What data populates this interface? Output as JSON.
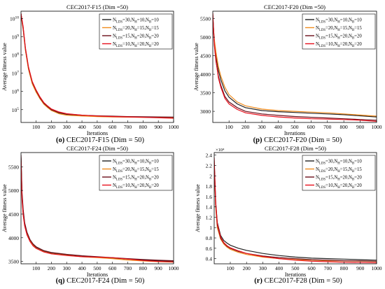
{
  "figure": {
    "series_colors": [
      "#222222",
      "#f08c1e",
      "#6b0f1a",
      "#e8101c"
    ],
    "panels": [
      {
        "title": "CEC2017-F15 (Dim =50)",
        "xlabel": "Iterations",
        "ylabel": "Average fitness value",
        "caption_letter": "(o)",
        "caption_text": " CEC2017-F15 (Dim = 50)"
      },
      {
        "title": "CEC2017-F20 (Dim =50)",
        "xlabel": "Iterations",
        "ylabel": "Average fitness value",
        "caption_letter": "(p)",
        "caption_text": " CEC2017-F20 (Dim = 50)"
      },
      {
        "title": "CEC2017-F24 (Dim =50)",
        "xlabel": "Iterations",
        "ylabel": "Average fitness value",
        "caption_letter": "(q)",
        "caption_text": " CEC2017-F24 (Dim = 50)"
      },
      {
        "title": "CEC2017-F28 (Dim =50)",
        "xlabel": "Iterations",
        "ylabel": "Average fitness value",
        "caption_letter": "(r)",
        "caption_text": " CEC2017-F28 (Dim = 50)",
        "y_multiplier": "×10⁴"
      }
    ]
  },
  "chart_data": [
    {
      "type": "line",
      "title": "CEC2017-F15 (Dim =50)",
      "xlabel": "Iterations",
      "ylabel": "Average fitness value",
      "yscale": "log",
      "xlim": [
        1,
        1000
      ],
      "ylim_log10": [
        4.3,
        10.4
      ],
      "x_ticks": [
        100,
        200,
        300,
        400,
        500,
        600,
        700,
        800,
        900,
        1000
      ],
      "y_ticks": [
        {
          "value": 100000.0,
          "base": "10",
          "exp": "5"
        },
        {
          "value": 1000000.0,
          "base": "10",
          "exp": "6"
        },
        {
          "value": 10000000.0,
          "base": "10",
          "exp": "7"
        },
        {
          "value": 100000000.0,
          "base": "10",
          "exp": "8"
        },
        {
          "value": 1000000000.0,
          "base": "10",
          "exp": "9"
        },
        {
          "value": 10000000000.0,
          "base": "10",
          "exp": "10"
        }
      ],
      "legend_location": "top-right",
      "series": [
        {
          "name": "N_LDS=30,N_H=10,N_B=10",
          "label": {
            "n": "N",
            "s1": "LDS",
            "v1": "=30,N",
            "s2": "H",
            "v2": "=10,N",
            "s3": "B",
            "v3": "=10"
          },
          "x": [
            1,
            15,
            30,
            50,
            75,
            100,
            125,
            150,
            175,
            200,
            250,
            300,
            400,
            500,
            600,
            700,
            800,
            900,
            1000
          ],
          "y": [
            18000000000.0,
            3000000000.0,
            200000000.0,
            18000000.0,
            3000000.0,
            1000000.0,
            400000.0,
            220000.0,
            140000.0,
            90000.0,
            65000.0,
            55000.0,
            48000.0,
            44000.0,
            42000.0,
            40000.0,
            39000.0,
            38000.0,
            37000.0
          ]
        },
        {
          "name": "N_LDS=20,N_H=15,N_B=15",
          "label": {
            "n": "N",
            "s1": "LDS",
            "v1": "=20,N",
            "s2": "H",
            "v2": "=15,N",
            "s3": "B",
            "v3": "=15"
          },
          "x": [
            1,
            15,
            30,
            50,
            75,
            100,
            125,
            150,
            175,
            200,
            250,
            300,
            400,
            500,
            600,
            700,
            800,
            900,
            1000
          ],
          "y": [
            15000000000.0,
            2500000000.0,
            180000000.0,
            16000000.0,
            2600000.0,
            900000.0,
            400000.0,
            200000.0,
            130000.0,
            90000.0,
            60000.0,
            50000.0,
            45000.0,
            42000.0,
            40000.0,
            39000.0,
            38000.0,
            37000.0,
            36000.0
          ]
        },
        {
          "name": "N_LDS=15,N_H=20,N_B=20",
          "label": {
            "n": "N",
            "s1": "LDS",
            "v1": "=15,N",
            "s2": "H",
            "v2": "=20,N",
            "s3": "B",
            "v3": "=20"
          },
          "x": [
            1,
            15,
            30,
            50,
            75,
            100,
            125,
            150,
            175,
            200,
            250,
            300,
            400,
            500,
            600,
            700,
            800,
            900,
            1000
          ],
          "y": [
            17000000000.0,
            2800000000.0,
            220000000.0,
            20000000.0,
            3200000.0,
            1100000.0,
            450000.0,
            230000.0,
            150000.0,
            100000.0,
            70000.0,
            58000.0,
            50000.0,
            46000.0,
            44000.0,
            42000.0,
            41000.0,
            40000.0,
            39000.0
          ]
        },
        {
          "name": "N_LDS=10,N_H=20,N_B=20",
          "label": {
            "n": "N",
            "s1": "LDS",
            "v1": "=10,N",
            "s2": "H",
            "v2": "=20,N",
            "s3": "B",
            "v3": "=20"
          },
          "x": [
            1,
            15,
            30,
            50,
            75,
            100,
            125,
            150,
            175,
            200,
            250,
            300,
            400,
            500,
            600,
            700,
            800,
            900,
            1000
          ],
          "y": [
            19000000000.0,
            3500000000.0,
            250000000.0,
            22000000.0,
            3500000.0,
            1200000.0,
            500000.0,
            250000.0,
            160000.0,
            110000.0,
            75000.0,
            60000.0,
            50000.0,
            45000.0,
            42000.0,
            40000.0,
            38000.0,
            36000.0,
            34000.0
          ]
        }
      ]
    },
    {
      "type": "line",
      "title": "CEC2017-F20 (Dim =50)",
      "xlabel": "Iterations",
      "ylabel": "Average fitness value",
      "xlim": [
        1,
        1000
      ],
      "ylim": [
        2700,
        5700
      ],
      "x_ticks": [
        100,
        200,
        300,
        400,
        500,
        600,
        700,
        800,
        900,
        1000
      ],
      "y_ticks": [
        3000,
        3500,
        4000,
        4500,
        5000,
        5500
      ],
      "legend_location": "top-right",
      "series": [
        {
          "name": "N_LDS=30,N_H=10,N_B=10",
          "label": {
            "n": "N",
            "s1": "LDS",
            "v1": "=30,N",
            "s2": "H",
            "v2": "=10,N",
            "s3": "B",
            "v3": "=10"
          },
          "x": [
            1,
            10,
            20,
            35,
            50,
            75,
            100,
            150,
            200,
            300,
            400,
            500,
            600,
            700,
            800,
            900,
            1000
          ],
          "y": [
            5550,
            4900,
            4500,
            4100,
            3850,
            3550,
            3380,
            3200,
            3100,
            3020,
            2990,
            2970,
            2950,
            2930,
            2910,
            2880,
            2850
          ]
        },
        {
          "name": "N_LDS=20,N_H=15,N_B=15",
          "label": {
            "n": "N",
            "s1": "LDS",
            "v1": "=20,N",
            "s2": "H",
            "v2": "=15,N",
            "s3": "B",
            "v3": "=15"
          },
          "x": [
            1,
            10,
            20,
            35,
            50,
            75,
            100,
            150,
            200,
            300,
            400,
            500,
            600,
            700,
            800,
            900,
            1000
          ],
          "y": [
            5500,
            4950,
            4600,
            4200,
            3950,
            3650,
            3450,
            3250,
            3150,
            3060,
            3020,
            3000,
            2980,
            2960,
            2930,
            2900,
            2870
          ]
        },
        {
          "name": "N_LDS=15,N_H=20,N_B=20",
          "label": {
            "n": "N",
            "s1": "LDS",
            "v1": "=15,N",
            "s2": "H",
            "v2": "=20,N",
            "s3": "B",
            "v3": "=20"
          },
          "x": [
            1,
            10,
            20,
            35,
            50,
            75,
            100,
            150,
            200,
            300,
            400,
            500,
            600,
            700,
            800,
            900,
            1000
          ],
          "y": [
            5600,
            4800,
            4350,
            3950,
            3700,
            3400,
            3250,
            3100,
            3000,
            2930,
            2890,
            2860,
            2840,
            2820,
            2800,
            2780,
            2760
          ]
        },
        {
          "name": "N_LDS=10,N_H=20,N_B=20",
          "label": {
            "n": "N",
            "s1": "LDS",
            "v1": "=10,N",
            "s2": "H",
            "v2": "=20,N",
            "s3": "B",
            "v3": "=20"
          },
          "x": [
            1,
            10,
            20,
            35,
            50,
            75,
            100,
            150,
            200,
            300,
            400,
            500,
            600,
            700,
            800,
            900,
            1000
          ],
          "y": [
            5650,
            4850,
            4400,
            3900,
            3650,
            3350,
            3200,
            3050,
            2960,
            2890,
            2850,
            2820,
            2800,
            2790,
            2780,
            2760,
            2730
          ]
        }
      ]
    },
    {
      "type": "line",
      "title": "CEC2017-F24 (Dim =50)",
      "xlabel": "Iterations",
      "ylabel": "Average fitness value",
      "xlim": [
        1,
        1000
      ],
      "ylim": [
        3450,
        5800
      ],
      "x_ticks": [
        100,
        200,
        300,
        400,
        500,
        600,
        700,
        800,
        900,
        1000
      ],
      "y_ticks": [
        3500,
        4000,
        4500,
        5000,
        5500
      ],
      "legend_location": "top-right",
      "series": [
        {
          "name": "N_LDS=30,N_H=10,N_B=10",
          "label": {
            "n": "N",
            "s1": "LDS",
            "v1": "=30,N",
            "s2": "H",
            "v2": "=10,N",
            "s3": "B",
            "v3": "=10"
          },
          "x": [
            1,
            8,
            15,
            25,
            40,
            60,
            80,
            100,
            150,
            200,
            300,
            400,
            500,
            600,
            700,
            800,
            900,
            1000
          ],
          "y": [
            5700,
            4900,
            4550,
            4300,
            4100,
            3950,
            3860,
            3800,
            3720,
            3680,
            3640,
            3610,
            3590,
            3570,
            3550,
            3530,
            3515,
            3505
          ]
        },
        {
          "name": "N_LDS=20,N_H=15,N_B=15",
          "label": {
            "n": "N",
            "s1": "LDS",
            "v1": "=20,N",
            "s2": "H",
            "v2": "=15,N",
            "s3": "B",
            "v3": "=15"
          },
          "x": [
            1,
            8,
            15,
            25,
            40,
            60,
            80,
            100,
            150,
            200,
            300,
            400,
            500,
            600,
            700,
            800,
            900,
            1000
          ],
          "y": [
            5650,
            4850,
            4500,
            4280,
            4080,
            3930,
            3840,
            3780,
            3705,
            3665,
            3630,
            3600,
            3580,
            3560,
            3530,
            3510,
            3495,
            3485
          ]
        },
        {
          "name": "N_LDS=15,N_H=20,N_B=20",
          "label": {
            "n": "N",
            "s1": "LDS",
            "v1": "=15,N",
            "s2": "H",
            "v2": "=20,N",
            "s3": "B",
            "v3": "=20"
          },
          "x": [
            1,
            8,
            15,
            25,
            40,
            60,
            80,
            100,
            150,
            200,
            300,
            400,
            500,
            600,
            700,
            800,
            900,
            1000
          ],
          "y": [
            5750,
            4950,
            4600,
            4320,
            4120,
            3960,
            3870,
            3810,
            3730,
            3690,
            3650,
            3620,
            3600,
            3580,
            3560,
            3540,
            3525,
            3515
          ]
        },
        {
          "name": "N_LDS=10,N_H=20,N_B=20",
          "label": {
            "n": "N",
            "s1": "LDS",
            "v1": "=10,N",
            "s2": "H",
            "v2": "=20,N",
            "s3": "B",
            "v3": "=20"
          },
          "x": [
            1,
            8,
            15,
            25,
            40,
            60,
            80,
            100,
            150,
            200,
            300,
            400,
            500,
            600,
            700,
            800,
            900,
            1000
          ],
          "y": [
            5600,
            4800,
            4480,
            4250,
            4060,
            3920,
            3830,
            3775,
            3700,
            3660,
            3625,
            3600,
            3590,
            3580,
            3550,
            3520,
            3500,
            3490
          ]
        }
      ]
    },
    {
      "type": "line",
      "title": "CEC2017-F28 (Dim =50)",
      "xlabel": "Iterations",
      "ylabel": "Average fitness value",
      "y_multiplier": "×10⁴",
      "xlim": [
        1,
        1000
      ],
      "ylim": [
        0.3,
        2.45
      ],
      "x_ticks": [
        100,
        200,
        300,
        400,
        500,
        600,
        700,
        800,
        900,
        1000
      ],
      "y_ticks": [
        0.4,
        0.6,
        0.8,
        1,
        1.2,
        1.4,
        1.6,
        1.8,
        2,
        2.2,
        2.4
      ],
      "y_tick_labels": [
        "0.4",
        "0.6",
        "0.8",
        "1",
        "1.2",
        "1.4",
        "1.6",
        "1.8",
        "2",
        "2.2",
        "2.4"
      ],
      "legend_location": "top-right",
      "series": [
        {
          "name": "N_LDS=30,N_H=10,N_B=10",
          "label": {
            "n": "N",
            "s1": "LDS",
            "v1": "=30,N",
            "s2": "H",
            "v2": "=10,N",
            "s3": "B",
            "v3": "=10"
          },
          "x": [
            1,
            10,
            20,
            40,
            60,
            80,
            100,
            150,
            200,
            300,
            400,
            500,
            600,
            700,
            800,
            900,
            1000
          ],
          "y": [
            2.3,
            1.5,
            1.1,
            0.85,
            0.75,
            0.7,
            0.66,
            0.6,
            0.56,
            0.5,
            0.46,
            0.43,
            0.41,
            0.4,
            0.39,
            0.38,
            0.37
          ]
        },
        {
          "name": "N_LDS=20,N_H=15,N_B=15",
          "label": {
            "n": "N",
            "s1": "LDS",
            "v1": "=20,N",
            "s2": "H",
            "v2": "=15,N",
            "s3": "B",
            "v3": "=15"
          },
          "x": [
            1,
            10,
            20,
            40,
            60,
            80,
            100,
            150,
            200,
            300,
            400,
            500,
            600,
            700,
            800,
            900,
            1000
          ],
          "y": [
            2.2,
            1.4,
            1.0,
            0.78,
            0.68,
            0.62,
            0.58,
            0.52,
            0.48,
            0.43,
            0.4,
            0.38,
            0.37,
            0.36,
            0.355,
            0.35,
            0.345
          ]
        },
        {
          "name": "N_LDS=15,N_H=20,N_B=20",
          "label": {
            "n": "N",
            "s1": "LDS",
            "v1": "=15,N",
            "s2": "H",
            "v2": "=20,N",
            "s3": "B",
            "v3": "=20"
          },
          "x": [
            1,
            10,
            20,
            40,
            60,
            80,
            100,
            150,
            200,
            300,
            400,
            500,
            600,
            700,
            800,
            900,
            1000
          ],
          "y": [
            2.25,
            1.45,
            1.05,
            0.8,
            0.7,
            0.64,
            0.6,
            0.54,
            0.5,
            0.45,
            0.42,
            0.4,
            0.38,
            0.37,
            0.36,
            0.355,
            0.35
          ]
        },
        {
          "name": "N_LDS=10,N_H=20,N_B=20",
          "label": {
            "n": "N",
            "s1": "LDS",
            "v1": "=10,N",
            "s2": "H",
            "v2": "=20,N",
            "s3": "B",
            "v3": "=20"
          },
          "x": [
            1,
            10,
            20,
            40,
            60,
            80,
            100,
            150,
            200,
            300,
            400,
            500,
            600,
            700,
            800,
            900,
            1000
          ],
          "y": [
            2.35,
            1.5,
            1.08,
            0.82,
            0.71,
            0.65,
            0.61,
            0.55,
            0.5,
            0.44,
            0.4,
            0.37,
            0.35,
            0.34,
            0.33,
            0.325,
            0.32
          ]
        }
      ]
    }
  ]
}
